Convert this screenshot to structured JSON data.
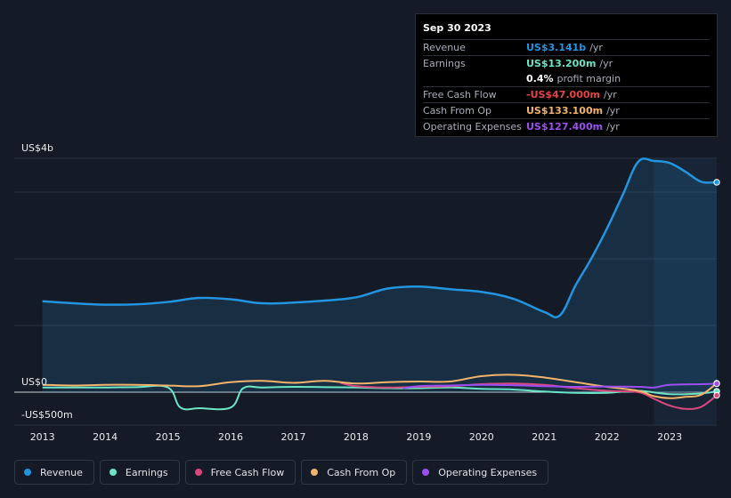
{
  "tooltip": {
    "date": "Sep 30 2023",
    "rows": [
      {
        "label": "Revenue",
        "value": "US$3.141b",
        "unit": "/yr",
        "color": "#2394df"
      },
      {
        "label": "Earnings",
        "value": "US$13.200m",
        "unit": "/yr",
        "color": "#6ce5c6"
      },
      {
        "label": "",
        "value": "0.4%",
        "unit": "profit margin",
        "color": "#ffffff"
      },
      {
        "label": "Free Cash Flow",
        "value": "-US$47.000m",
        "unit": "/yr",
        "color": "#e64545"
      },
      {
        "label": "Cash From Op",
        "value": "US$133.100m",
        "unit": "/yr",
        "color": "#f2b36b"
      },
      {
        "label": "Operating Expenses",
        "value": "US$127.400m",
        "unit": "/yr",
        "color": "#9b4ff0"
      }
    ]
  },
  "chart_data": {
    "type": "area",
    "y_axis_labels": {
      "top": "US$4b",
      "zero": "US$0",
      "bottom": "-US$500m"
    },
    "ylim": [
      -500,
      3500
    ],
    "x_ticks": [
      "2013",
      "2014",
      "2015",
      "2016",
      "2017",
      "2018",
      "2019",
      "2020",
      "2021",
      "2022",
      "2023"
    ],
    "x_tick_values": [
      2013,
      2014,
      2015,
      2016,
      2017,
      2018,
      2019,
      2020,
      2021,
      2022,
      2023
    ],
    "xlim": [
      2012.55,
      2023.75
    ],
    "highlight_start": 2022.75,
    "series": [
      {
        "name": "Revenue",
        "color": "#2394df",
        "fill": true,
        "points": [
          [
            2013.0,
            1360
          ],
          [
            2013.5,
            1330
          ],
          [
            2014.0,
            1310
          ],
          [
            2014.5,
            1315
          ],
          [
            2015.0,
            1350
          ],
          [
            2015.5,
            1410
          ],
          [
            2016.0,
            1390
          ],
          [
            2016.5,
            1330
          ],
          [
            2017.0,
            1340
          ],
          [
            2017.5,
            1370
          ],
          [
            2018.0,
            1420
          ],
          [
            2018.5,
            1550
          ],
          [
            2019.0,
            1580
          ],
          [
            2019.5,
            1540
          ],
          [
            2020.0,
            1500
          ],
          [
            2020.5,
            1400
          ],
          [
            2021.0,
            1200
          ],
          [
            2021.25,
            1150
          ],
          [
            2021.5,
            1600
          ],
          [
            2021.75,
            2000
          ],
          [
            2022.0,
            2450
          ],
          [
            2022.25,
            2950
          ],
          [
            2022.5,
            3450
          ],
          [
            2022.75,
            3460
          ],
          [
            2023.0,
            3430
          ],
          [
            2023.25,
            3300
          ],
          [
            2023.5,
            3150
          ],
          [
            2023.75,
            3141
          ]
        ]
      },
      {
        "name": "Earnings",
        "color": "#6ce5c6",
        "fill": false,
        "points": [
          [
            2013.0,
            70
          ],
          [
            2013.5,
            70
          ],
          [
            2014.0,
            70
          ],
          [
            2014.5,
            75
          ],
          [
            2015.0,
            70
          ],
          [
            2015.2,
            -230
          ],
          [
            2015.5,
            -240
          ],
          [
            2016.0,
            -230
          ],
          [
            2016.2,
            60
          ],
          [
            2016.5,
            70
          ],
          [
            2017.0,
            80
          ],
          [
            2017.5,
            75
          ],
          [
            2018.0,
            70
          ],
          [
            2018.5,
            60
          ],
          [
            2019.0,
            60
          ],
          [
            2019.5,
            70
          ],
          [
            2020.0,
            50
          ],
          [
            2020.5,
            40
          ],
          [
            2021.0,
            10
          ],
          [
            2021.5,
            -10
          ],
          [
            2022.0,
            -10
          ],
          [
            2022.5,
            20
          ],
          [
            2023.0,
            -30
          ],
          [
            2023.5,
            -20
          ],
          [
            2023.75,
            13
          ]
        ]
      },
      {
        "name": "Free Cash Flow",
        "color": "#d9487d",
        "fill": false,
        "points": [
          [
            2017.75,
            140
          ],
          [
            2018.0,
            90
          ],
          [
            2018.5,
            70
          ],
          [
            2019.0,
            80
          ],
          [
            2019.5,
            90
          ],
          [
            2020.0,
            120
          ],
          [
            2020.5,
            130
          ],
          [
            2021.0,
            110
          ],
          [
            2021.5,
            60
          ],
          [
            2022.0,
            20
          ],
          [
            2022.5,
            0
          ],
          [
            2022.75,
            -100
          ],
          [
            2023.0,
            -200
          ],
          [
            2023.25,
            -250
          ],
          [
            2023.5,
            -220
          ],
          [
            2023.75,
            -47
          ]
        ]
      },
      {
        "name": "Cash From Op",
        "color": "#f2b36b",
        "fill": false,
        "points": [
          [
            2013.0,
            110
          ],
          [
            2013.5,
            100
          ],
          [
            2014.0,
            110
          ],
          [
            2014.5,
            110
          ],
          [
            2015.0,
            100
          ],
          [
            2015.5,
            90
          ],
          [
            2016.0,
            150
          ],
          [
            2016.5,
            170
          ],
          [
            2017.0,
            140
          ],
          [
            2017.5,
            170
          ],
          [
            2018.0,
            130
          ],
          [
            2018.5,
            150
          ],
          [
            2019.0,
            160
          ],
          [
            2019.5,
            160
          ],
          [
            2020.0,
            240
          ],
          [
            2020.5,
            260
          ],
          [
            2021.0,
            220
          ],
          [
            2021.5,
            150
          ],
          [
            2022.0,
            80
          ],
          [
            2022.5,
            20
          ],
          [
            2022.75,
            -60
          ],
          [
            2023.0,
            -90
          ],
          [
            2023.25,
            -70
          ],
          [
            2023.5,
            -40
          ],
          [
            2023.75,
            133
          ]
        ]
      },
      {
        "name": "Operating Expenses",
        "color": "#9b4ff0",
        "fill": false,
        "points": [
          [
            2018.75,
            60
          ],
          [
            2019.0,
            90
          ],
          [
            2019.5,
            100
          ],
          [
            2020.0,
            110
          ],
          [
            2020.5,
            105
          ],
          [
            2021.0,
            90
          ],
          [
            2021.5,
            80
          ],
          [
            2022.0,
            85
          ],
          [
            2022.5,
            80
          ],
          [
            2022.75,
            70
          ],
          [
            2023.0,
            110
          ],
          [
            2023.5,
            120
          ],
          [
            2023.75,
            127
          ]
        ]
      }
    ]
  },
  "legend": [
    {
      "label": "Revenue",
      "color": "#2394df"
    },
    {
      "label": "Earnings",
      "color": "#6ce5c6"
    },
    {
      "label": "Free Cash Flow",
      "color": "#d9487d"
    },
    {
      "label": "Cash From Op",
      "color": "#f2b36b"
    },
    {
      "label": "Operating Expenses",
      "color": "#9b4ff0"
    }
  ]
}
